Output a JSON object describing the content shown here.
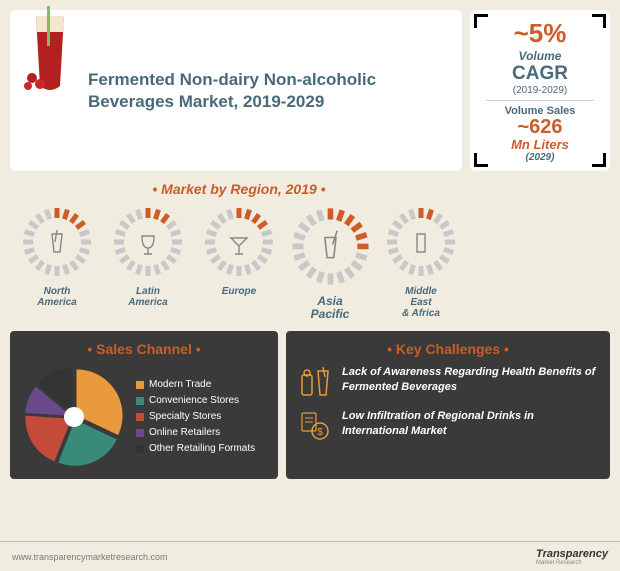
{
  "title": "Fermented Non-dairy Non-alcoholic Beverages Market, 2019-2029",
  "stat": {
    "cagr_value": "~5%",
    "cagr_volume_label": "Volume",
    "cagr_label": "CAGR",
    "cagr_period": "(2019-2029)",
    "vs_label": "Volume Sales",
    "vs_value": "~626",
    "vs_unit": "Mn Liters",
    "vs_year": "(2029)"
  },
  "region_heading": "• Market by Region, 2019 •",
  "regions": [
    {
      "name": "North America",
      "value": 22,
      "highlight": false
    },
    {
      "name": "Latin America",
      "value": 15,
      "highlight": false
    },
    {
      "name": "Europe",
      "value": 18,
      "highlight": false
    },
    {
      "name": "Asia Pacific",
      "value": 32,
      "highlight": true
    },
    {
      "name": "Middle East & Africa",
      "value": 12,
      "highlight": false
    }
  ],
  "region_gauge": {
    "segments": 20,
    "seg_color_on": "#cc5c28",
    "seg_color_off": "#c8c8c8",
    "bg": "#f0ece0"
  },
  "sales": {
    "heading": "• Sales Channel •",
    "slices": [
      {
        "label": "Modern Trade",
        "value": 32,
        "color": "#e89a3c"
      },
      {
        "label": "Convenience Stores",
        "value": 24,
        "color": "#3a8a7a"
      },
      {
        "label": "Specialty Stores",
        "value": 20,
        "color": "#c44a3a"
      },
      {
        "label": "Online Retailers",
        "value": 10,
        "color": "#6a4a8a"
      },
      {
        "label": "Other Retailing Formats",
        "value": 14,
        "color": "#333333"
      }
    ],
    "pie_bg": "#3a3a3a",
    "pie_hole": "#ffffff"
  },
  "challenges": {
    "heading": "• Key Challenges •",
    "items": [
      "Lack of Awareness Regarding Health Benefits of Fermented Beverages",
      "Low Infiltration of Regional Drinks in International Market"
    ]
  },
  "footer": {
    "url": "www.transparencymarketresearch.com",
    "brand": "Transparency",
    "brand2": "Market Research"
  },
  "colors": {
    "accent": "#cc5c28",
    "steel": "#4a6a7a",
    "panel": "#3a3a3a",
    "page_bg": "#f0ece0"
  }
}
